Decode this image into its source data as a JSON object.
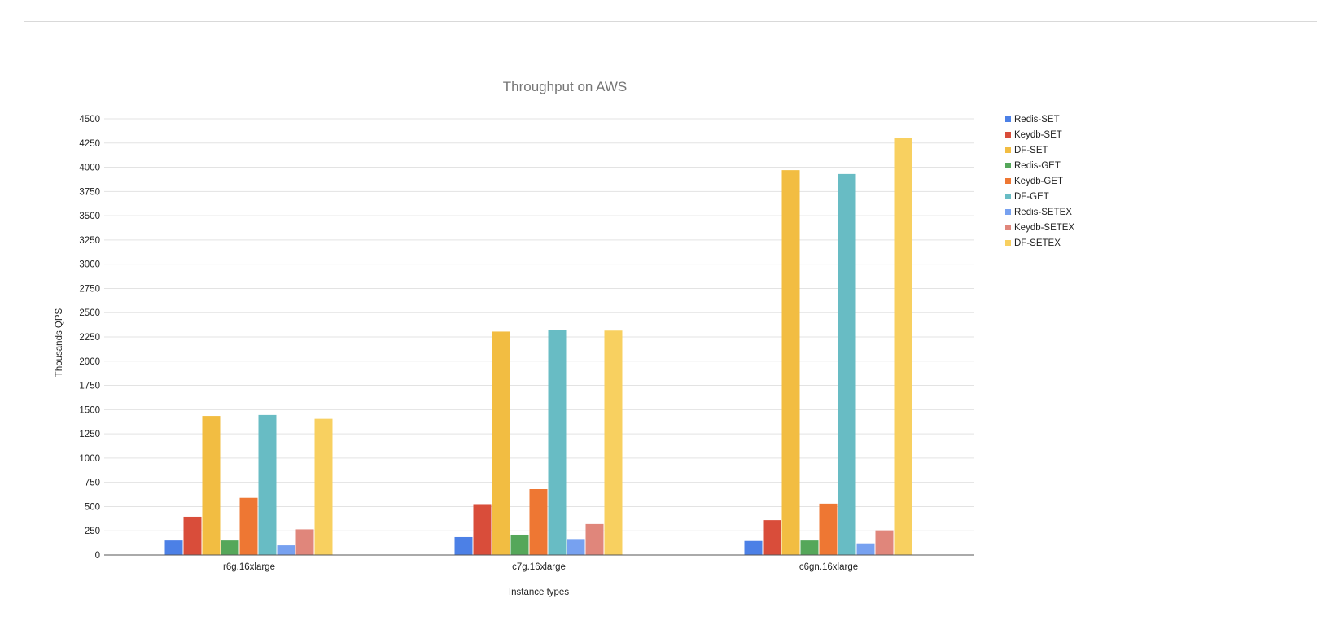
{
  "chart_data": {
    "type": "bar",
    "title": "Throughput on AWS",
    "xlabel": "Instance types",
    "ylabel": "Thousands QPS",
    "ylim": [
      0,
      4500
    ],
    "yticks": [
      0,
      250,
      500,
      750,
      1000,
      1250,
      1500,
      1750,
      2000,
      2250,
      2500,
      2750,
      3000,
      3250,
      3500,
      3750,
      4000,
      4250,
      4500
    ],
    "grid": true,
    "legend_position": "right",
    "categories": [
      "r6g.16xlarge",
      "c7g.16xlarge",
      "c6gn.16xlarge"
    ],
    "series": [
      {
        "name": "Redis-SET",
        "color": "#4c80e6",
        "values": [
          150,
          185,
          145
        ]
      },
      {
        "name": "Keydb-SET",
        "color": "#d94d3a",
        "values": [
          395,
          525,
          360
        ]
      },
      {
        "name": "DF-SET",
        "color": "#f2bd42",
        "values": [
          1435,
          2305,
          3970
        ]
      },
      {
        "name": "Redis-GET",
        "color": "#55a75a",
        "values": [
          150,
          210,
          150
        ]
      },
      {
        "name": "Keydb-GET",
        "color": "#ee7733",
        "values": [
          590,
          680,
          530
        ]
      },
      {
        "name": "DF-GET",
        "color": "#68bcc4",
        "values": [
          1445,
          2320,
          3930
        ]
      },
      {
        "name": "Redis-SETEX",
        "color": "#77a1f0",
        "values": [
          100,
          165,
          120
        ]
      },
      {
        "name": "Keydb-SETEX",
        "color": "#e0867b",
        "values": [
          265,
          320,
          255
        ]
      },
      {
        "name": "DF-SETEX",
        "color": "#f8d060",
        "values": [
          1405,
          2315,
          4300
        ]
      }
    ]
  }
}
